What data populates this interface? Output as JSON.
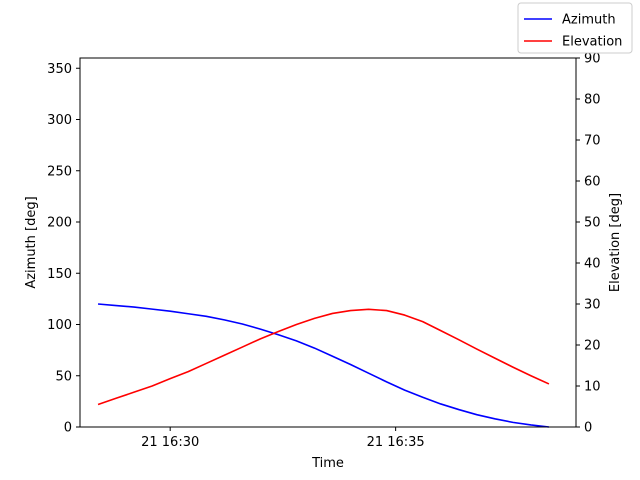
{
  "chart_data": {
    "type": "line",
    "xlabel": "Time",
    "ylabel_left": "Azimuth [deg]",
    "ylabel_right": "Elevation [deg]",
    "x_ticks": [
      {
        "label": "21 16:30",
        "minutes": 1.6
      },
      {
        "label": "21 16:35",
        "minutes": 6.6
      }
    ],
    "x_minutes": [
      0.0,
      0.4,
      0.8,
      1.2,
      1.6,
      2.0,
      2.4,
      2.8,
      3.2,
      3.6,
      4.0,
      4.4,
      4.8,
      5.2,
      5.6,
      6.0,
      6.4,
      6.8,
      7.2,
      7.6,
      8.0,
      8.4,
      8.8,
      9.2,
      9.6,
      10.0
    ],
    "xlim": [
      -0.4,
      10.6
    ],
    "ylim_left": [
      0,
      360
    ],
    "ylim_right": [
      0,
      90
    ],
    "yticks_left": [
      0,
      50,
      100,
      150,
      200,
      250,
      300,
      350
    ],
    "yticks_right": [
      0,
      10,
      20,
      30,
      40,
      50,
      60,
      70,
      80,
      90
    ],
    "legend_position": "top-right",
    "series": [
      {
        "name": "Azimuth",
        "axis": "left",
        "color": "#0000ff",
        "values": [
          120,
          118.5,
          117,
          115,
          113,
          110.5,
          108,
          104.5,
          100.5,
          95.5,
          90,
          84,
          77,
          69,
          61,
          52.5,
          44,
          36,
          29,
          22.5,
          17,
          12,
          8,
          4.5,
          2,
          0
        ]
      },
      {
        "name": "Elevation",
        "axis": "right",
        "color": "#ff0000",
        "values": [
          5.5,
          7.0,
          8.5,
          10.0,
          11.8,
          13.5,
          15.5,
          17.5,
          19.5,
          21.5,
          23.3,
          25.0,
          26.5,
          27.7,
          28.4,
          28.7,
          28.4,
          27.3,
          25.7,
          23.5,
          21.3,
          19.0,
          16.8,
          14.6,
          12.5,
          10.5
        ]
      }
    ]
  }
}
